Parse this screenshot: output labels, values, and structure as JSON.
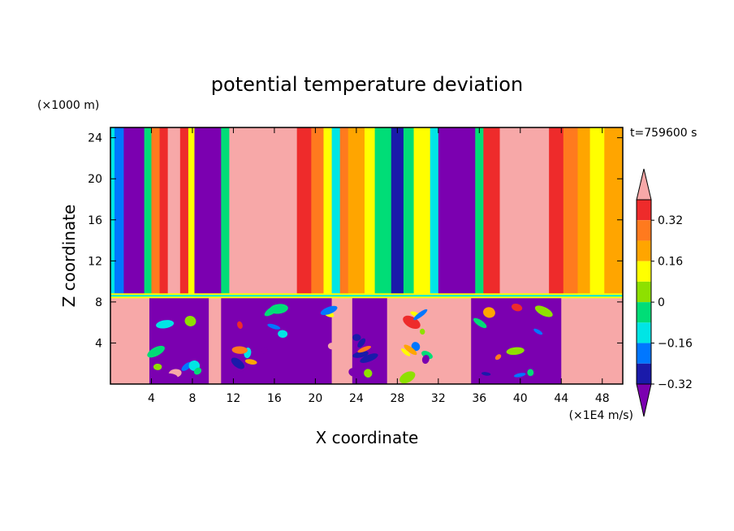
{
  "chart_data": {
    "type": "heatmap",
    "title": "potential temperature deviation",
    "xlabel": "X coordinate",
    "ylabel": "Z coordinate",
    "x_unit": "(×1E4 m/s)",
    "y_unit": "(×1000 m)",
    "time_label": "t=759600 s",
    "xlim": [
      0,
      50
    ],
    "ylim": [
      0,
      25
    ],
    "x_ticks": [
      4,
      8,
      12,
      16,
      20,
      24,
      28,
      32,
      36,
      40,
      44,
      48
    ],
    "y_ticks": [
      4,
      8,
      12,
      16,
      20,
      24
    ],
    "colorbar": {
      "levels": [
        -0.4,
        -0.32,
        -0.24,
        -0.16,
        -0.08,
        0,
        0.08,
        0.16,
        0.24,
        0.32,
        0.4
      ],
      "labels": [
        "0.32",
        "0.16",
        "0",
        "−0.16",
        "−0.32"
      ],
      "label_values": [
        0.32,
        0.16,
        0,
        -0.16,
        -0.32
      ],
      "colors": [
        "#f7a8a8",
        "#ee2b2b",
        "#ff7a1e",
        "#ffa500",
        "#ffff00",
        "#8ee000",
        "#00dd77",
        "#00e5e5",
        "#0077ff",
        "#1a1aaa",
        "#7b00b0"
      ],
      "extend": "both"
    },
    "upper_layer_columns": [
      {
        "x0": 0,
        "x1": 0.4,
        "v": -0.16
      },
      {
        "x0": 0.4,
        "x1": 1.3,
        "v": -0.24
      },
      {
        "x0": 1.3,
        "x1": 3.3,
        "v": -0.4
      },
      {
        "x0": 3.3,
        "x1": 4.0,
        "v": -0.08
      },
      {
        "x0": 4.0,
        "x1": 4.8,
        "v": 0.24
      },
      {
        "x0": 4.8,
        "x1": 5.6,
        "v": 0.32
      },
      {
        "x0": 5.6,
        "x1": 6.8,
        "v": 0.45
      },
      {
        "x0": 6.8,
        "x1": 7.6,
        "v": 0.32
      },
      {
        "x0": 7.6,
        "x1": 8.2,
        "v": 0.08
      },
      {
        "x0": 8.2,
        "x1": 10.8,
        "v": -0.45
      },
      {
        "x0": 10.8,
        "x1": 11.6,
        "v": -0.08
      },
      {
        "x0": 11.6,
        "x1": 18.2,
        "v": 0.45
      },
      {
        "x0": 18.2,
        "x1": 19.6,
        "v": 0.32
      },
      {
        "x0": 19.6,
        "x1": 20.8,
        "v": 0.24
      },
      {
        "x0": 20.8,
        "x1": 21.6,
        "v": 0.08
      },
      {
        "x0": 21.6,
        "x1": 22.4,
        "v": -0.16
      },
      {
        "x0": 22.4,
        "x1": 23.2,
        "v": 0.24
      },
      {
        "x0": 23.2,
        "x1": 24.8,
        "v": 0.16
      },
      {
        "x0": 24.8,
        "x1": 25.8,
        "v": 0.08
      },
      {
        "x0": 25.8,
        "x1": 27.4,
        "v": -0.08
      },
      {
        "x0": 27.4,
        "x1": 28.6,
        "v": -0.32
      },
      {
        "x0": 28.6,
        "x1": 29.6,
        "v": -0.08
      },
      {
        "x0": 29.6,
        "x1": 31.2,
        "v": 0.08
      },
      {
        "x0": 31.2,
        "x1": 32.0,
        "v": -0.16
      },
      {
        "x0": 32.0,
        "x1": 35.6,
        "v": -0.45
      },
      {
        "x0": 35.6,
        "x1": 36.4,
        "v": -0.08
      },
      {
        "x0": 36.4,
        "x1": 38.0,
        "v": 0.32
      },
      {
        "x0": 38.0,
        "x1": 42.8,
        "v": 0.45
      },
      {
        "x0": 42.8,
        "x1": 44.2,
        "v": 0.32
      },
      {
        "x0": 44.2,
        "x1": 45.6,
        "v": 0.24
      },
      {
        "x0": 45.6,
        "x1": 46.8,
        "v": 0.16
      },
      {
        "x0": 46.8,
        "x1": 48.2,
        "v": 0.08
      },
      {
        "x0": 48.2,
        "x1": 50,
        "v": 0.16
      }
    ],
    "lower_layer_regions": [
      {
        "x0": 0,
        "x1": 3.8,
        "v": 0.45
      },
      {
        "x0": 3.8,
        "x1": 9.6,
        "v": -0.45
      },
      {
        "x0": 9.6,
        "x1": 10.8,
        "v": 0.45
      },
      {
        "x0": 10.8,
        "x1": 21.6,
        "v": -0.45
      },
      {
        "x0": 21.6,
        "x1": 23.6,
        "v": 0.45
      },
      {
        "x0": 23.6,
        "x1": 27.0,
        "v": -0.45
      },
      {
        "x0": 27.0,
        "x1": 32.4,
        "v": 0.45
      },
      {
        "x0": 32.4,
        "x1": 35.2,
        "v": 0.45
      },
      {
        "x0": 35.2,
        "x1": 44.0,
        "v": -0.45
      },
      {
        "x0": 44.0,
        "x1": 50,
        "v": 0.45
      }
    ],
    "inversion_height": 8.6
  }
}
